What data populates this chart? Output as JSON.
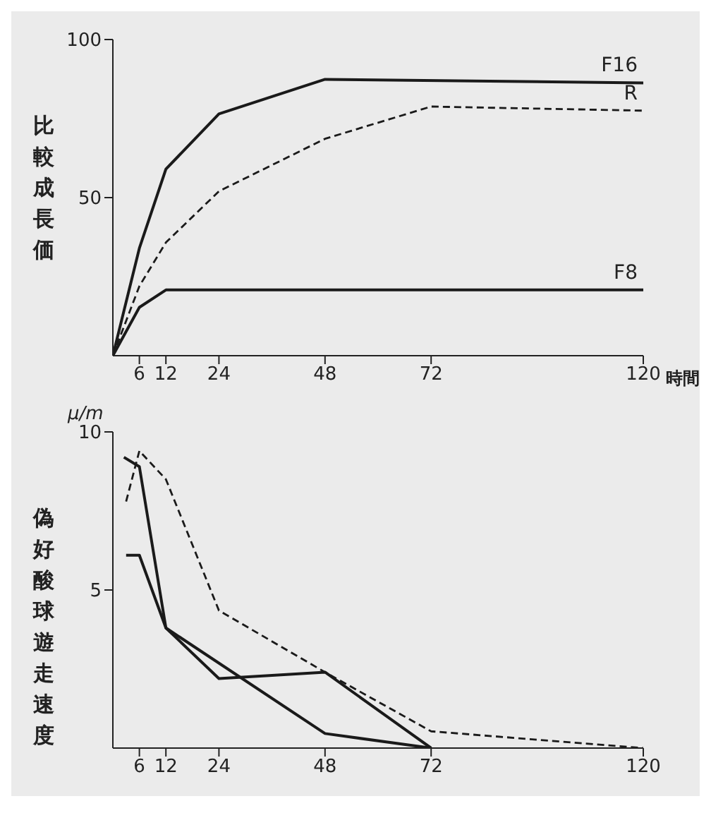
{
  "chart_data": [
    {
      "type": "line",
      "ylabel": "比較成長価",
      "xlabel": "時間",
      "xlim": [
        0,
        120
      ],
      "xticks": [
        6,
        12,
        24,
        48,
        72,
        120
      ],
      "ylim": [
        0,
        100
      ],
      "yticks": [
        50,
        100
      ],
      "grid": false,
      "legend": false,
      "marker": "none",
      "series": [
        {
          "name": "F16",
          "color": "#1a1a1a",
          "line_style": "solid",
          "x": [
            0,
            6,
            12,
            24,
            48,
            120
          ],
          "values": [
            0,
            34,
            59,
            76.5,
            87.4,
            86.3
          ]
        },
        {
          "name": "R",
          "color": "#1a1a1a",
          "line_style": "dashed",
          "x": [
            0,
            6,
            12,
            24,
            48,
            72,
            120
          ],
          "values": [
            0,
            22,
            35.8,
            52,
            68.6,
            78.8,
            77.5
          ]
        },
        {
          "name": "F8",
          "color": "#1a1a1a",
          "line_style": "solid",
          "x": [
            0,
            6,
            12,
            120
          ],
          "values": [
            0,
            15.3,
            20.8,
            20.8
          ]
        }
      ]
    },
    {
      "type": "line",
      "ylabel": "偽好酸球遊走速度",
      "annotations": [
        "μ/m"
      ],
      "xlim": [
        0,
        120
      ],
      "xticks": [
        6,
        12,
        24,
        48,
        72,
        120
      ],
      "ylim": [
        0,
        10
      ],
      "yticks": [
        5,
        10
      ],
      "grid": false,
      "legend": false,
      "marker": "none",
      "series": [
        {
          "color": "#1a1a1a",
          "line_style": "solid",
          "x": [
            2.5,
            6,
            12,
            24,
            48,
            72
          ],
          "values": [
            9.2,
            8.9,
            3.8,
            2.2,
            2.4,
            0
          ]
        },
        {
          "color": "#1a1a1a",
          "line_style": "solid",
          "x": [
            3,
            6,
            12,
            48,
            72
          ],
          "values": [
            6.1,
            6.1,
            3.8,
            0.46,
            0
          ]
        },
        {
          "color": "#1a1a1a",
          "line_style": "dashed",
          "x": [
            3,
            6,
            12,
            24,
            48,
            72,
            120
          ],
          "values": [
            7.8,
            9.4,
            8.5,
            4.35,
            2.4,
            0.53,
            0
          ]
        }
      ]
    }
  ]
}
